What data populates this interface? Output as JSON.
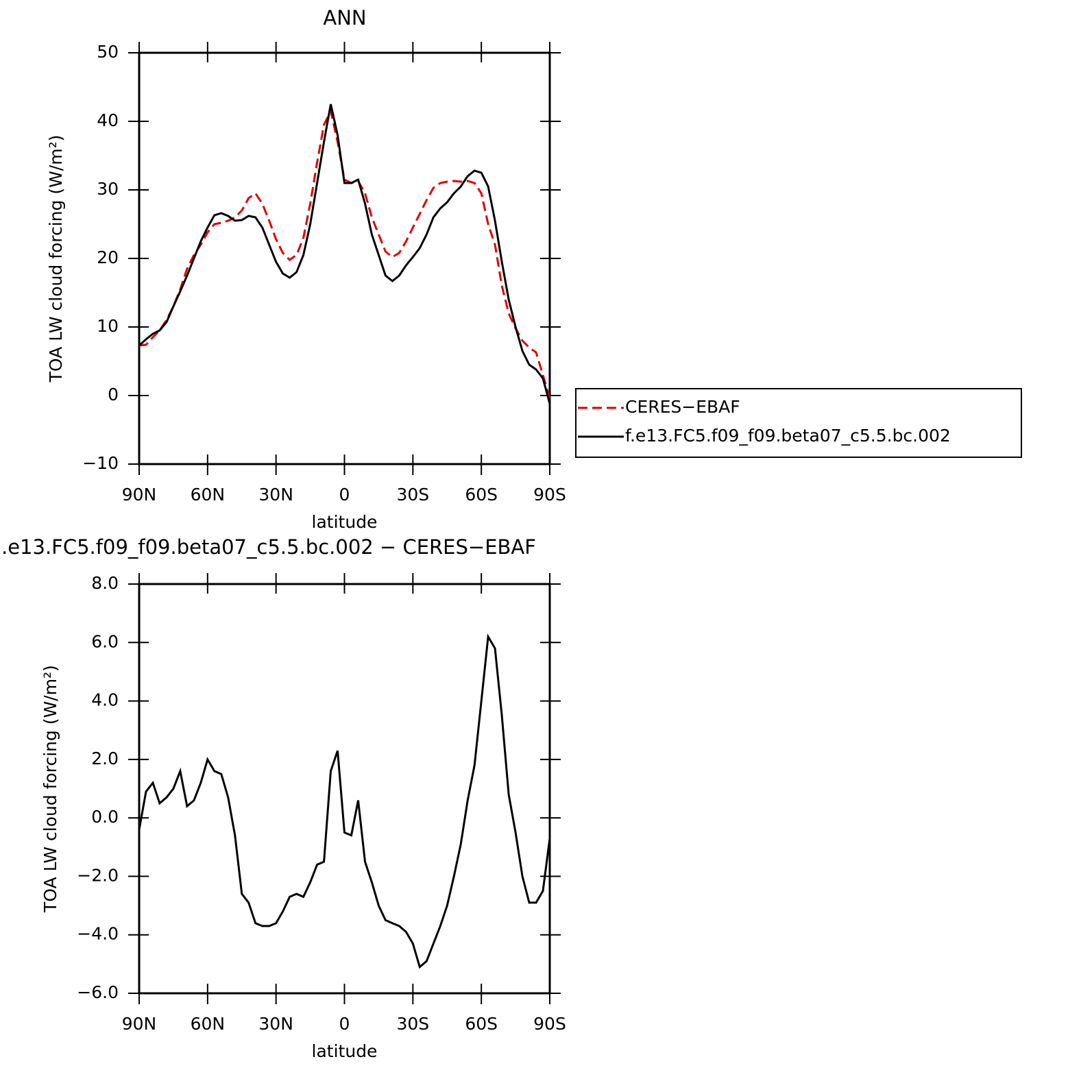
{
  "chart_data": [
    {
      "type": "line",
      "title": "ANN",
      "xlabel": "latitude",
      "ylabel": "TOA LW cloud forcing (W/m²)",
      "x": [
        90,
        87,
        84,
        81,
        78,
        75,
        72,
        69,
        66,
        63,
        60,
        57,
        54,
        51,
        48,
        45,
        42,
        39,
        36,
        33,
        30,
        27,
        24,
        21,
        18,
        15,
        12,
        9,
        6,
        3,
        0,
        -3,
        -6,
        -9,
        -12,
        -15,
        -18,
        -21,
        -24,
        -27,
        -30,
        -33,
        -36,
        -39,
        -42,
        -45,
        -48,
        -51,
        -54,
        -57,
        -60,
        -63,
        -66,
        -69,
        -72,
        -75,
        -78,
        -81,
        -84,
        -87,
        -90
      ],
      "series": [
        {
          "name": "CERES−EBAF",
          "color": "#e00000",
          "dashed": true,
          "values": [
            7.3,
            7.4,
            8.5,
            9.5,
            11.0,
            13.0,
            15.5,
            18.5,
            20.5,
            22.0,
            23.8,
            25.0,
            25.2,
            25.5,
            26.0,
            27.0,
            28.8,
            29.5,
            28.0,
            25.5,
            22.8,
            20.8,
            19.8,
            20.5,
            23.0,
            28.0,
            34.0,
            39.5,
            41.5,
            37.0,
            31.5,
            31.0,
            31.3,
            29.5,
            26.0,
            23.5,
            21.0,
            20.2,
            20.8,
            22.5,
            24.5,
            26.5,
            28.5,
            30.3,
            31.0,
            31.2,
            31.3,
            31.2,
            31.3,
            31.0,
            29.5,
            25.0,
            22.0,
            16.0,
            12.0,
            9.8,
            8.0,
            7.0,
            6.3,
            3.0,
            -0.5
          ]
        },
        {
          "name": "f.e13.FC5.f09_f09.beta07_c5.5.bc.002",
          "color": "#000000",
          "dashed": false,
          "values": [
            7.3,
            8.2,
            9.0,
            9.5,
            10.7,
            13.0,
            15.2,
            17.5,
            20.0,
            22.5,
            24.5,
            26.3,
            26.6,
            26.2,
            25.5,
            25.6,
            26.2,
            26.0,
            24.5,
            22.0,
            19.5,
            17.8,
            17.2,
            18.0,
            20.5,
            25.0,
            31.0,
            37.0,
            42.5,
            38.0,
            31.0,
            31.0,
            31.5,
            28.0,
            23.5,
            20.5,
            17.5,
            16.7,
            17.5,
            19.0,
            20.2,
            21.5,
            23.5,
            26.0,
            27.3,
            28.2,
            29.5,
            30.5,
            32.0,
            32.8,
            32.5,
            30.5,
            25.5,
            19.5,
            14.0,
            10.0,
            6.5,
            4.5,
            3.8,
            2.5,
            -1.2
          ]
        }
      ],
      "xlim": [
        90,
        -90
      ],
      "xticks": [
        {
          "value": 90,
          "label": "90N"
        },
        {
          "value": 60,
          "label": "60N"
        },
        {
          "value": 30,
          "label": "30N"
        },
        0,
        {
          "value": -30,
          "label": "30S"
        },
        {
          "value": -60,
          "label": "60S"
        },
        {
          "value": -90,
          "label": "90S"
        }
      ],
      "ylim": [
        -10,
        50
      ],
      "yticks": [
        {
          "value": -10,
          "label": "−10"
        },
        0,
        10,
        20,
        30,
        40,
        50
      ],
      "legend": "right"
    },
    {
      "type": "line",
      "title": ".e13.FC5.f09_f09.beta07_c5.5.bc.002 − CERES−EBAF",
      "xlabel": "latitude",
      "ylabel": "TOA LW cloud forcing (W/m²)",
      "x": [
        90,
        87,
        84,
        81,
        78,
        75,
        72,
        69,
        66,
        63,
        60,
        57,
        54,
        51,
        48,
        45,
        42,
        39,
        36,
        33,
        30,
        27,
        24,
        21,
        18,
        15,
        12,
        9,
        6,
        3,
        0,
        -3,
        -6,
        -9,
        -12,
        -15,
        -18,
        -21,
        -24,
        -27,
        -30,
        -33,
        -36,
        -39,
        -42,
        -45,
        -48,
        -51,
        -54,
        -57,
        -60,
        -63,
        -66,
        -69,
        -72,
        -75,
        -78,
        -81,
        -84,
        -87,
        -90
      ],
      "series": [
        {
          "color": "#000000",
          "dashed": false,
          "values": [
            -0.4,
            0.9,
            1.2,
            0.5,
            0.7,
            1.0,
            1.6,
            0.4,
            0.6,
            1.2,
            2.0,
            1.6,
            1.5,
            0.7,
            -0.6,
            -2.6,
            -2.9,
            -3.6,
            -3.7,
            -3.7,
            -3.6,
            -3.2,
            -2.7,
            -2.6,
            -2.7,
            -2.2,
            -1.6,
            -1.5,
            1.6,
            2.3,
            -0.5,
            -0.6,
            0.6,
            -1.5,
            -2.2,
            -3.0,
            -3.5,
            -3.6,
            -3.7,
            -3.9,
            -4.3,
            -5.1,
            -4.9,
            -4.3,
            -3.7,
            -3.0,
            -2.0,
            -0.9,
            0.6,
            1.8,
            4.0,
            6.2,
            5.8,
            3.5,
            0.8,
            -0.5,
            -2.0,
            -2.9,
            -2.9,
            -2.5,
            -0.7
          ]
        }
      ],
      "xlim": [
        90,
        -90
      ],
      "xticks": [
        {
          "value": 90,
          "label": "90N"
        },
        {
          "value": 60,
          "label": "60N"
        },
        {
          "value": 30,
          "label": "30N"
        },
        0,
        {
          "value": -30,
          "label": "30S"
        },
        {
          "value": -60,
          "label": "60S"
        },
        {
          "value": -90,
          "label": "90S"
        }
      ],
      "ylim": [
        -6,
        8
      ],
      "yticks": [
        {
          "value": -6,
          "label": "−6.0"
        },
        {
          "value": -4,
          "label": "−4.0"
        },
        {
          "value": -2,
          "label": "−2.0"
        },
        {
          "value": 0,
          "label": "0.0"
        },
        {
          "value": 2,
          "label": "2.0"
        },
        {
          "value": 4,
          "label": "4.0"
        },
        {
          "value": 6,
          "label": "6.0"
        },
        {
          "value": 8,
          "label": "8.0"
        }
      ]
    }
  ]
}
